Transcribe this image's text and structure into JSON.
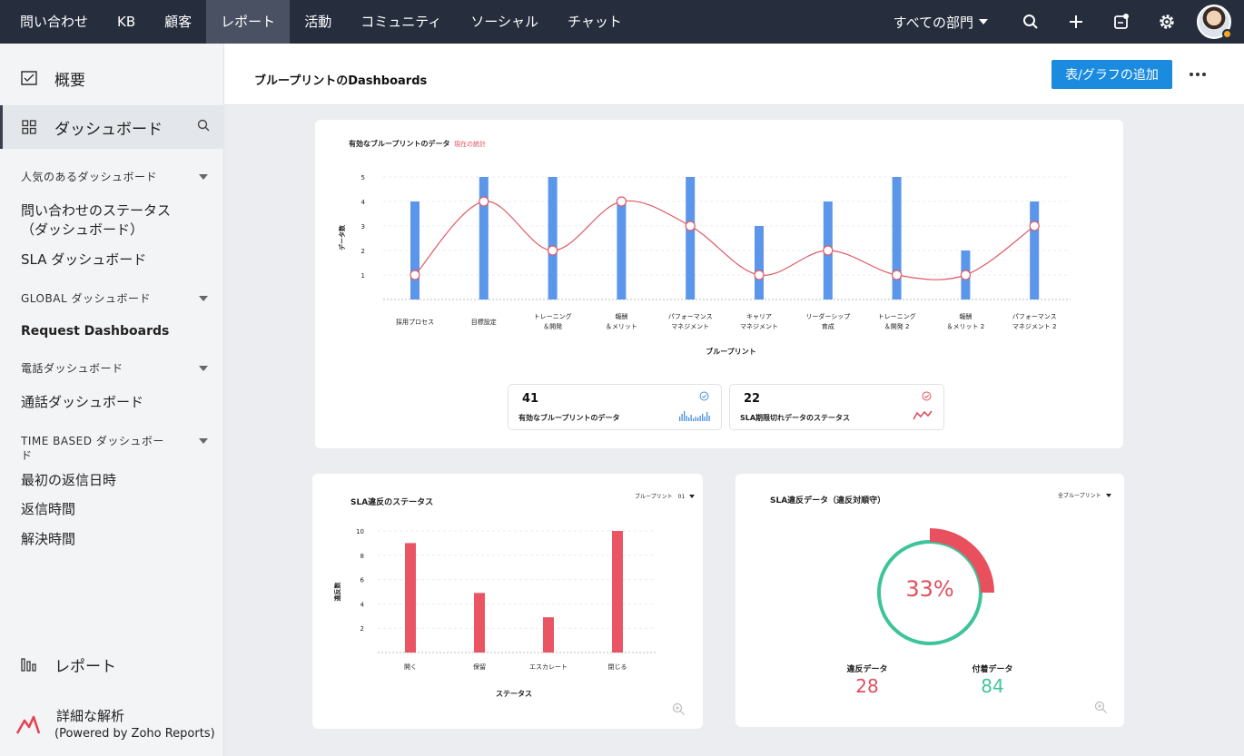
{
  "topnav": {
    "tabs": [
      "問い合わせ",
      "KB",
      "顧客",
      "レポート",
      "活動",
      "コミュニティ",
      "ソーシャル",
      "チャット"
    ],
    "active_tab": "レポート",
    "department": "すべての部門",
    "icons": [
      "search-icon",
      "plus-icon",
      "compose-icon",
      "gear-icon",
      "avatar"
    ]
  },
  "sidebar": {
    "overview": "概要",
    "dashboards": "ダッシュボード",
    "categories": [
      {
        "title": "人気のあるダッシュボード",
        "items": [
          "問い合わせのステータス\n（ダッシュボード）",
          "SLA ダッシュボード"
        ]
      },
      {
        "title": "GLOBAL ダッシュボード",
        "items": [
          "Request Dashboards"
        ]
      },
      {
        "title": "電話ダッシュボード",
        "items": [
          "通話ダッシュボード"
        ]
      },
      {
        "title": "TIME BASED ダッシュボード",
        "items": [
          "最初の返信日時",
          "返信時間",
          "解決時間"
        ]
      }
    ],
    "reports": "レポート",
    "analytics_title": "詳細な解析",
    "analytics_sub": "(Powered by Zoho Reports)"
  },
  "header": {
    "title": "ブループリントのDashboards",
    "add_button": "表/グラフの追加"
  },
  "card1": {
    "title": "有効なブループリントのデータ",
    "tag": "現在の統計",
    "kpis": [
      {
        "value": "41",
        "label": "有効なブループリントのデータ",
        "accent": "#4a8fe0"
      },
      {
        "value": "22",
        "label": "SLA期限切れデータのステータス",
        "accent": "#e0505e"
      }
    ]
  },
  "card2": {
    "title": "SLA違反のステータス",
    "filter": "ブループリント　01"
  },
  "card3": {
    "title": "SLA違反データ（違反対順守）",
    "filter": "全ブループリント",
    "percent": "33%",
    "stats": [
      {
        "label": "違反データ",
        "value": "28",
        "color": "#e0505e"
      },
      {
        "label": "付着データ",
        "value": "84",
        "color": "#3ec49a"
      }
    ]
  },
  "chart_data": [
    {
      "type": "bar",
      "title": "有効なブループリントのデータ",
      "xlabel": "ブループリント",
      "ylabel": "データ数",
      "ylim": [
        0,
        5
      ],
      "yticks": [
        1,
        2,
        3,
        4,
        5
      ],
      "categories": [
        "採用プロセス",
        "目標設定",
        "トレーニング\n＆開発",
        "報酬\n＆メリット",
        "パフォーマンス\nマネジメント",
        "キャリア\nマネジメント",
        "リーダーシップ\n育成",
        "トレーニング\n＆開発 2",
        "報酬\n＆メリット 2",
        "パフォーマンス\nマネジメント 2"
      ],
      "series": [
        {
          "kind": "bar",
          "color": "#5b96ea",
          "values": [
            4,
            5,
            5,
            4,
            5,
            3,
            4,
            5,
            2,
            4
          ]
        },
        {
          "kind": "line",
          "color": "#e05a66",
          "values": [
            1,
            4,
            2,
            4,
            3,
            1,
            2,
            1,
            1,
            3
          ]
        }
      ],
      "grid": true
    },
    {
      "type": "bar",
      "title": "SLA違反のステータス",
      "xlabel": "ステータス",
      "ylabel": "違反数",
      "ylim": [
        0,
        10
      ],
      "yticks": [
        2,
        4,
        6,
        8,
        10
      ],
      "categories": [
        "開く",
        "保留",
        "エスカレート",
        "閉じる"
      ],
      "values": [
        9,
        4.9,
        2.9,
        10
      ],
      "color": "#ea5563",
      "grid": true
    },
    {
      "type": "pie",
      "title": "SLA違反データ（違反対順守）",
      "categories": [
        "違反データ",
        "付着データ"
      ],
      "values": [
        28,
        84
      ],
      "colors": [
        "#e8505e",
        "#3ec49a"
      ]
    }
  ]
}
